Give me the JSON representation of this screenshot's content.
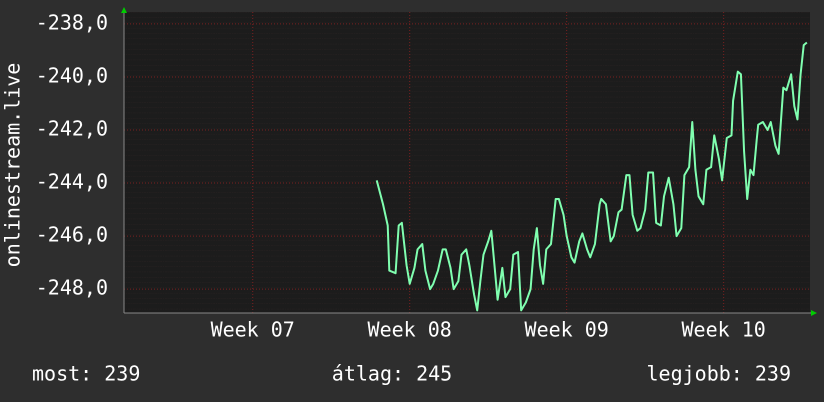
{
  "chart_data": {
    "type": "line",
    "ylabel": "onlinestream.live",
    "x": [
      7.79,
      7.83,
      7.86,
      7.87,
      7.91,
      7.93,
      7.95,
      7.98,
      8.0,
      8.03,
      8.05,
      8.08,
      8.1,
      8.13,
      8.15,
      8.18,
      8.21,
      8.23,
      8.26,
      8.28,
      8.31,
      8.33,
      8.36,
      8.38,
      8.41,
      8.43,
      8.45,
      8.47,
      8.5,
      8.52,
      8.54,
      8.56,
      8.59,
      8.61,
      8.64,
      8.66,
      8.69,
      8.71,
      8.74,
      8.77,
      8.79,
      8.81,
      8.83,
      8.85,
      8.87,
      8.9,
      8.93,
      8.95,
      8.98,
      9.0,
      9.03,
      9.05,
      9.08,
      9.1,
      9.13,
      9.15,
      9.18,
      9.21,
      9.22,
      9.25,
      9.28,
      9.3,
      9.33,
      9.35,
      9.38,
      9.4,
      9.42,
      9.45,
      9.47,
      9.5,
      9.52,
      9.55,
      9.57,
      9.6,
      9.62,
      9.65,
      9.68,
      9.7,
      9.73,
      9.75,
      9.78,
      9.8,
      9.82,
      9.84,
      9.87,
      9.89,
      9.92,
      9.94,
      9.97,
      9.99,
      10.02,
      10.05,
      10.06,
      10.09,
      10.11,
      10.13,
      10.15,
      10.17,
      10.19,
      10.21,
      10.22,
      10.25,
      10.28,
      10.3,
      10.33,
      10.35,
      10.38,
      10.4,
      10.43,
      10.45,
      10.47,
      10.49,
      10.51,
      10.53
    ],
    "series": [
      {
        "color": "#80ffb0",
        "values": [
          -243.9,
          -244.8,
          -245.6,
          -247.3,
          -247.4,
          -245.6,
          -245.5,
          -247.1,
          -247.8,
          -247.2,
          -246.5,
          -246.3,
          -247.3,
          -248.0,
          -247.8,
          -247.3,
          -246.5,
          -246.5,
          -247.2,
          -248.0,
          -247.7,
          -246.7,
          -246.5,
          -247.1,
          -248.2,
          -248.8,
          -247.7,
          -246.7,
          -246.2,
          -245.8,
          -247.1,
          -248.4,
          -247.2,
          -248.3,
          -248.0,
          -246.7,
          -246.6,
          -248.8,
          -248.5,
          -248.0,
          -246.5,
          -245.7,
          -247.1,
          -247.8,
          -246.5,
          -246.3,
          -244.6,
          -244.6,
          -245.2,
          -246.0,
          -246.8,
          -247.0,
          -246.2,
          -245.9,
          -246.5,
          -246.8,
          -246.3,
          -244.8,
          -244.6,
          -244.8,
          -246.2,
          -246.0,
          -245.1,
          -245.0,
          -243.7,
          -243.7,
          -245.2,
          -245.8,
          -245.7,
          -245.0,
          -243.6,
          -243.6,
          -245.5,
          -245.6,
          -244.5,
          -243.8,
          -244.8,
          -246.0,
          -245.7,
          -243.7,
          -243.4,
          -241.7,
          -243.5,
          -244.5,
          -244.8,
          -243.5,
          -243.4,
          -242.2,
          -243.1,
          -243.9,
          -242.3,
          -242.2,
          -240.9,
          -239.8,
          -239.9,
          -242.8,
          -244.6,
          -243.5,
          -243.7,
          -242.4,
          -241.8,
          -241.7,
          -242.0,
          -241.7,
          -242.6,
          -242.9,
          -240.4,
          -240.5,
          -239.9,
          -241.1,
          -241.6,
          -239.9,
          -238.8,
          -238.7
        ]
      }
    ],
    "xlim": [
      6.18,
      10.55
    ],
    "xticks": [
      {
        "value": 7,
        "label": "Week 07"
      },
      {
        "value": 8,
        "label": "Week 08"
      },
      {
        "value": 9,
        "label": "Week 09"
      },
      {
        "value": 10,
        "label": "Week 10"
      }
    ],
    "ylim": [
      -248.9,
      -237.55
    ],
    "yticks": [
      {
        "value": -248,
        "label": "-248,0"
      },
      {
        "value": -246,
        "label": "-246,0"
      },
      {
        "value": -244,
        "label": "-244,0"
      },
      {
        "value": -242,
        "label": "-242,0"
      },
      {
        "value": -240,
        "label": "-240,0"
      },
      {
        "value": -238,
        "label": "-238,0"
      }
    ],
    "grid": true,
    "stats": [
      "most: 239",
      "átlag: 245",
      "legjobb: 239"
    ]
  }
}
